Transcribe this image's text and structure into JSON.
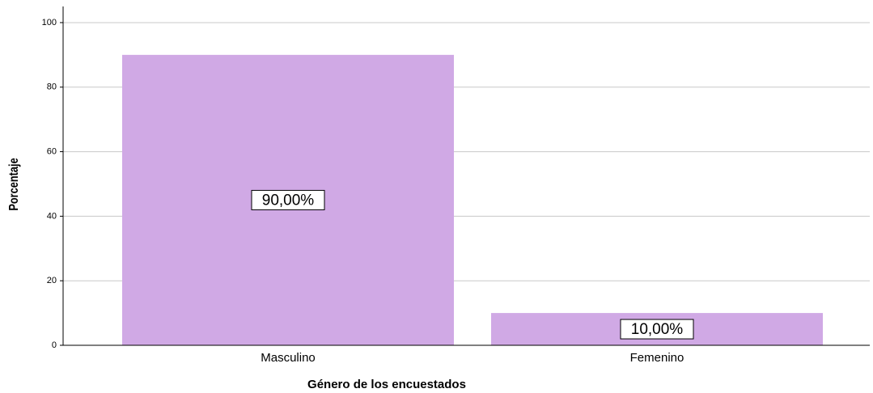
{
  "chart_data": {
    "type": "bar",
    "x_label": "Género de los encuestados",
    "y_label": "Porcentaje",
    "categories": [
      "Masculino",
      "Femenino"
    ],
    "values": [
      90,
      10
    ],
    "value_labels": [
      "90,00%",
      "10,00%"
    ],
    "color": "#d0a9e5",
    "ylim": [
      0,
      105
    ],
    "yticks": [
      0,
      20,
      40,
      60,
      80,
      100
    ],
    "grid": true
  }
}
